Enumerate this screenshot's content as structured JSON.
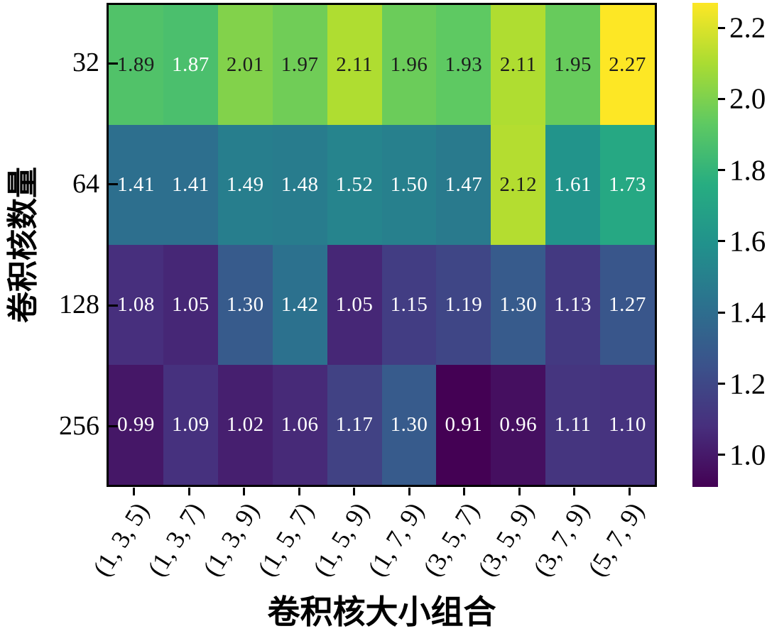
{
  "chart_data": {
    "type": "heatmap",
    "title": "",
    "xlabel": "卷积核大小组合",
    "ylabel": "卷积核数量",
    "x_categories": [
      "(1, 3, 5)",
      "(1, 3, 7)",
      "(1, 3, 9)",
      "(1, 5, 7)",
      "(1, 5, 9)",
      "(1, 7, 9)",
      "(3, 5, 7)",
      "(3, 5, 9)",
      "(3, 7, 9)",
      "(5, 7, 9)"
    ],
    "y_categories": [
      "32",
      "64",
      "128",
      "256"
    ],
    "values": [
      [
        1.89,
        1.87,
        2.01,
        1.97,
        2.11,
        1.96,
        1.93,
        2.11,
        1.95,
        2.27
      ],
      [
        1.41,
        1.41,
        1.49,
        1.48,
        1.52,
        1.5,
        1.47,
        2.12,
        1.61,
        1.73
      ],
      [
        1.08,
        1.05,
        1.3,
        1.42,
        1.05,
        1.15,
        1.19,
        1.3,
        1.13,
        1.27
      ],
      [
        0.99,
        1.09,
        1.02,
        1.06,
        1.17,
        1.3,
        0.91,
        0.96,
        1.11,
        1.1
      ]
    ],
    "vmin": 0.91,
    "vmax": 2.27,
    "colormap": "viridis",
    "colorbar_ticks": [
      2.2,
      2.0,
      1.8,
      1.6,
      1.4,
      1.2,
      1.0
    ],
    "annot_decimals": 2,
    "colorbar_tick_decimals": 1,
    "legend_position": "right-colorbar",
    "grid": false,
    "x_tick_rotation_deg": 58
  },
  "colors": {
    "viridis_stops": [
      "#440154",
      "#472f7d",
      "#3b528b",
      "#2c718e",
      "#21918c",
      "#27ad81",
      "#5ec962",
      "#aadc32",
      "#fde725"
    ],
    "annot_dark": "#1c1c1c",
    "annot_light": "#ffffff",
    "axis": "#000000",
    "background": "#ffffff"
  }
}
